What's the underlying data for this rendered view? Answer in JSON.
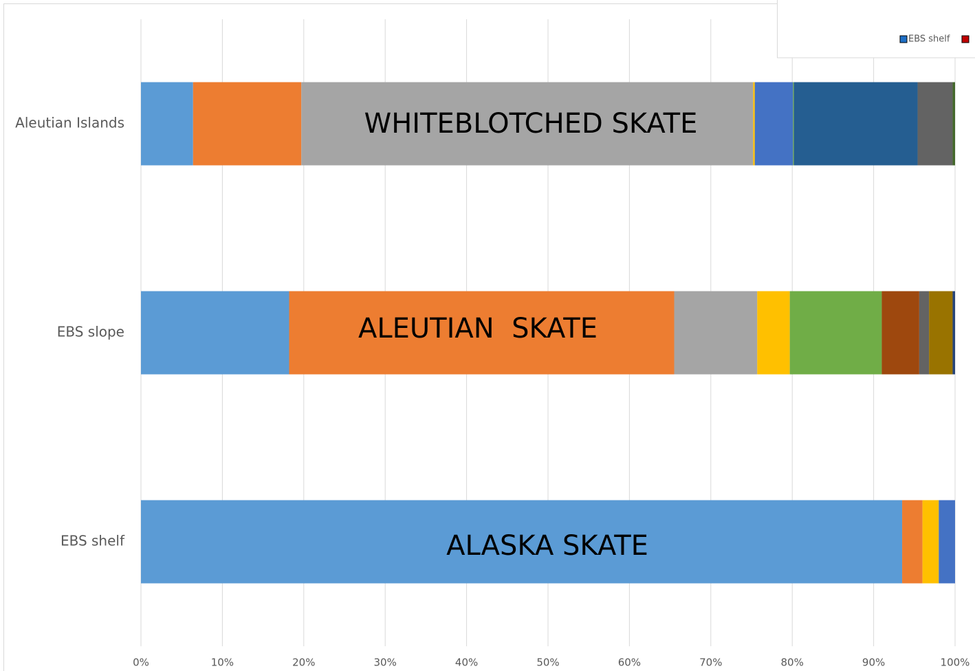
{
  "chart_data": {
    "type": "stacked-barh",
    "categories": [
      "Aleutian Islands",
      "EBS slope",
      "EBS shelf"
    ],
    "series": [
      {
        "color": "#5b9bd5",
        "values": [
          6.4,
          18.2,
          93.5
        ]
      },
      {
        "color": "#ed7d31",
        "values": [
          13.3,
          47.3,
          2.5
        ]
      },
      {
        "color": "#a5a5a5",
        "values": [
          55.5,
          10.2,
          0
        ]
      },
      {
        "color": "#ffc000",
        "values": [
          0.2,
          4.0,
          2.0
        ]
      },
      {
        "color": "#4472c4",
        "values": [
          4.7,
          0,
          2.0
        ]
      },
      {
        "color": "#70ad47",
        "values": [
          0.1,
          11.3,
          0
        ]
      },
      {
        "color": "#255e91",
        "values": [
          15.2,
          0,
          0
        ]
      },
      {
        "color": "#9e480e",
        "values": [
          0,
          4.6,
          0
        ]
      },
      {
        "color": "#636363",
        "values": [
          4.3,
          1.2,
          0
        ]
      },
      {
        "color": "#997300",
        "values": [
          0,
          2.9,
          0
        ]
      },
      {
        "color": "#264478",
        "values": [
          0,
          0.3,
          0
        ]
      },
      {
        "color": "#43682b",
        "values": [
          0.3,
          0,
          0
        ]
      }
    ],
    "annotations": [
      "WHITEBLOTCHED SKATE",
      "ALEUTIAN  SKATE",
      "ALASKA SKATE"
    ],
    "legend": [
      "EBS shelf"
    ],
    "xlim": [
      0,
      100
    ],
    "xticks": [
      {
        "value": 0,
        "label": "0%"
      },
      {
        "value": 10,
        "label": "10%"
      },
      {
        "value": 20,
        "label": "20%"
      },
      {
        "value": 30,
        "label": "30%"
      },
      {
        "value": 40,
        "label": "40%"
      },
      {
        "value": 50,
        "label": "50%"
      },
      {
        "value": 60,
        "label": "60%"
      },
      {
        "value": 70,
        "label": "70%"
      },
      {
        "value": 80,
        "label": "80%"
      },
      {
        "value": 90,
        "label": "90%"
      },
      {
        "value": 100,
        "label": "100%"
      }
    ],
    "grid": true
  }
}
